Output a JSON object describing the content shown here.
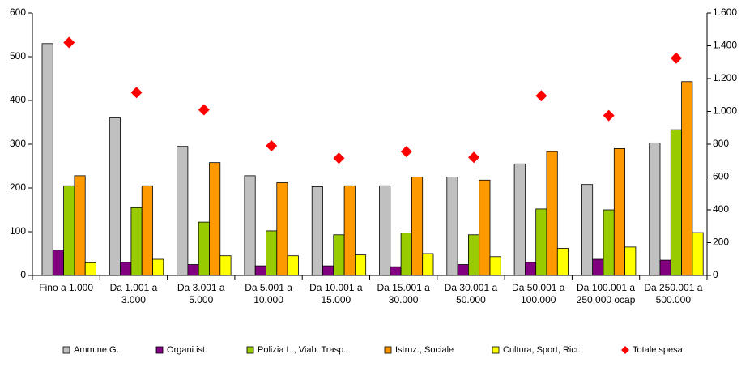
{
  "chart_data": {
    "type": "bar",
    "categories": [
      "Fino a 1.000",
      "Da 1.001 a 3.000",
      "Da 3.001 a 5.000",
      "Da 5.001 a 10.000",
      "Da 10.001 a 15.000",
      "Da 15.001 a 30.000",
      "Da 30.001 a 50.000",
      "Da 50.001 a 100.000",
      "Da 100.001 a 250.000 ocap",
      "Da 250.001 a 500.000"
    ],
    "series": [
      {
        "name": "Amm.ne G.",
        "color": "#c0c0c0",
        "values": [
          530,
          360,
          295,
          228,
          203,
          205,
          225,
          255,
          208,
          303
        ]
      },
      {
        "name": "Organi ist.",
        "color": "#800080",
        "values": [
          58,
          30,
          25,
          22,
          22,
          20,
          25,
          30,
          37,
          35
        ]
      },
      {
        "name": "Polizia L., Viab. Trasp.",
        "color": "#99cc00",
        "values": [
          205,
          155,
          122,
          102,
          93,
          97,
          93,
          152,
          150,
          333
        ]
      },
      {
        "name": "Istruz., Sociale",
        "color": "#ff9900",
        "values": [
          228,
          205,
          258,
          212,
          205,
          225,
          218,
          283,
          290,
          443
        ]
      },
      {
        "name": "Cultura, Sport, Ricr.",
        "color": "#ffff00",
        "values": [
          29,
          37,
          45,
          45,
          47,
          50,
          43,
          62,
          65,
          98
        ]
      },
      {
        "name": "Totale spesa",
        "color": "#ff0000",
        "axis": "y2",
        "marker": "diamond",
        "values": [
          1420,
          1115,
          1010,
          790,
          715,
          755,
          720,
          1095,
          975,
          1325
        ]
      }
    ],
    "ylim": [
      0,
      600
    ],
    "yticks": [
      0,
      100,
      200,
      300,
      400,
      500,
      600
    ],
    "y2lim": [
      0,
      1600
    ],
    "y2ticks": [
      0,
      200,
      400,
      600,
      800,
      {
        "value": 1000,
        "label": "1.000"
      },
      {
        "value": 1200,
        "label": "1.200"
      },
      {
        "value": 1400,
        "label": "1.400"
      },
      {
        "value": 1600,
        "label": "1.600"
      }
    ],
    "grid": false,
    "legend": "bottom"
  }
}
